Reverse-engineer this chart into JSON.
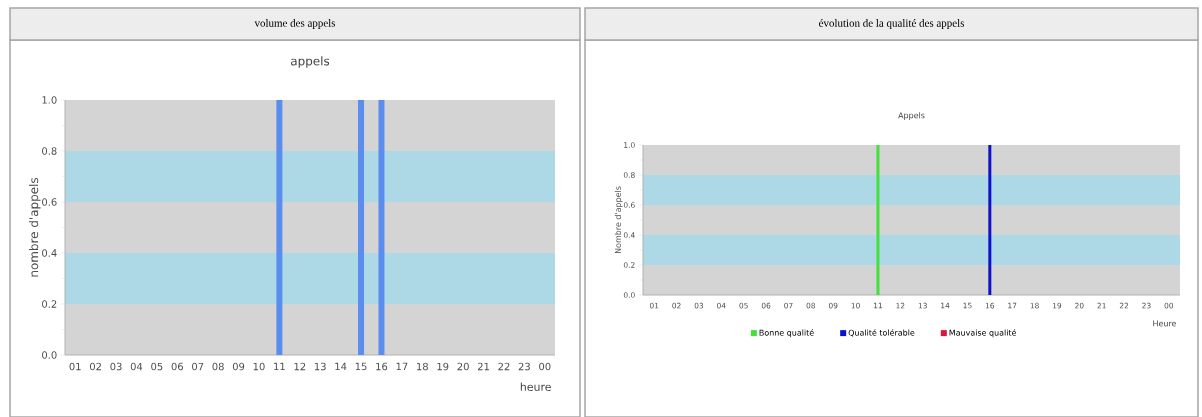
{
  "chart_data": [
    {
      "type": "bar",
      "title": "volume des appels",
      "subtitle": "appels",
      "xlabel": "heure",
      "ylabel": "nombre d'appels",
      "categories": [
        "01",
        "02",
        "03",
        "04",
        "05",
        "06",
        "07",
        "08",
        "09",
        "10",
        "11",
        "12",
        "13",
        "14",
        "15",
        "16",
        "17",
        "18",
        "19",
        "20",
        "21",
        "22",
        "23",
        "00"
      ],
      "values": [
        0,
        0,
        0,
        0,
        0,
        0,
        0,
        0,
        0,
        0,
        1,
        0,
        0,
        0,
        1,
        1,
        0,
        0,
        0,
        0,
        0,
        0,
        0,
        0
      ],
      "color": "#5b8def",
      "ylim": [
        0,
        1
      ],
      "yticks": [
        {
          "value": 0,
          "label": "0.0"
        },
        {
          "value": 0.2,
          "label": "0.2"
        },
        {
          "value": 0.4,
          "label": "0.4"
        },
        {
          "value": 0.6,
          "label": "0.6"
        },
        {
          "value": 0.8,
          "label": "0.8"
        },
        {
          "value": 1,
          "label": "1.0"
        }
      ],
      "bands": [
        {
          "axis": "y",
          "from": 0.2,
          "to": 0.4,
          "color": "#add8e6"
        },
        {
          "axis": "y",
          "from": 0.6,
          "to": 0.8,
          "color": "#add8e6"
        }
      ]
    },
    {
      "type": "bar",
      "title": "évolution de la qualité des appels",
      "subtitle": "Appels",
      "xlabel": "Heure",
      "ylabel": "Nombre d'appels",
      "categories": [
        "01",
        "02",
        "03",
        "04",
        "05",
        "06",
        "07",
        "08",
        "09",
        "10",
        "11",
        "12",
        "13",
        "14",
        "15",
        "16",
        "17",
        "18",
        "19",
        "20",
        "21",
        "22",
        "23",
        "00"
      ],
      "stacked": true,
      "legend": "bottom",
      "series": [
        {
          "name": "Bonne qualité",
          "color": "#44e03c",
          "values": [
            0,
            0,
            0,
            0,
            0,
            0,
            0,
            0,
            0,
            0,
            1,
            0,
            0,
            0,
            0,
            0,
            0,
            0,
            0,
            0,
            0,
            0,
            0,
            0
          ]
        },
        {
          "name": "Qualité tolérable",
          "color": "#1010cc",
          "values": [
            0,
            0,
            0,
            0,
            0,
            0,
            0,
            0,
            0,
            0,
            0,
            0,
            0,
            0,
            0,
            1,
            0,
            0,
            0,
            0,
            0,
            0,
            0,
            0
          ]
        },
        {
          "name": "Mauvaise qualité",
          "color": "#dc143c",
          "values": [
            0,
            0,
            0,
            0,
            0,
            0,
            0,
            0,
            0,
            0,
            0,
            0,
            0,
            0,
            0,
            0,
            0,
            0,
            0,
            0,
            0,
            0,
            0,
            0
          ]
        }
      ],
      "ylim": [
        0,
        1
      ],
      "yticks": [
        {
          "value": 0,
          "label": "0.0"
        },
        {
          "value": 0.2,
          "label": "0.2"
        },
        {
          "value": 0.4,
          "label": "0.4"
        },
        {
          "value": 0.6,
          "label": "0.6"
        },
        {
          "value": 0.8,
          "label": "0.8"
        },
        {
          "value": 1,
          "label": "1.0"
        }
      ],
      "bands": [
        {
          "axis": "y",
          "from": 0.2,
          "to": 0.4,
          "color": "#add8e6"
        },
        {
          "axis": "y",
          "from": 0.6,
          "to": 0.8,
          "color": "#add8e6"
        }
      ]
    }
  ]
}
